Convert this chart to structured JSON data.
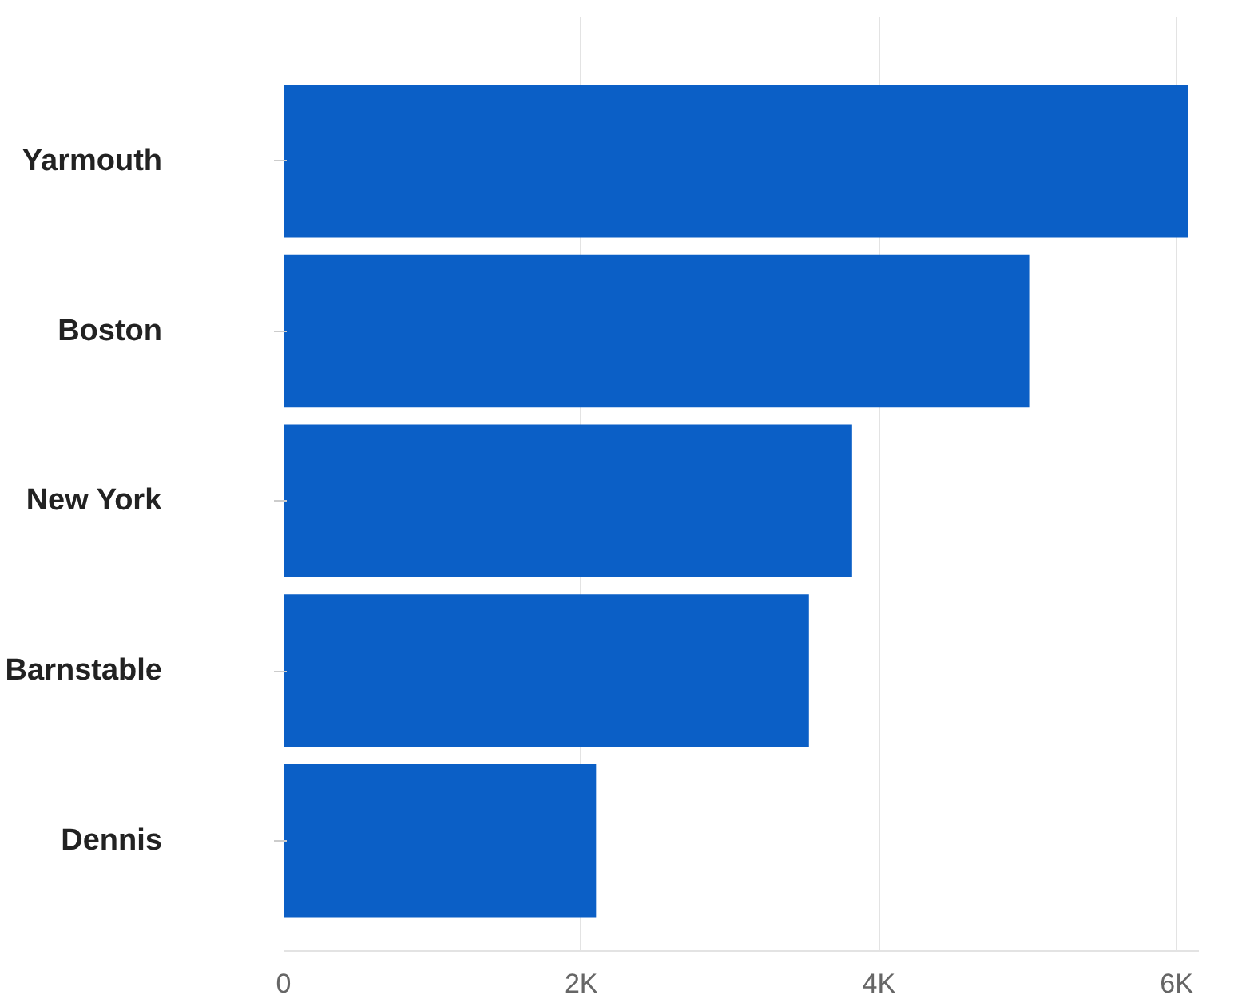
{
  "chart_data": {
    "type": "bar",
    "orientation": "horizontal",
    "categories": [
      "Yarmouth",
      "Boston",
      "New York",
      "Barnstable",
      "Dennis"
    ],
    "values": [
      6080,
      5010,
      3820,
      3530,
      2100
    ],
    "color": "#0b5fc6",
    "xlim": [
      0,
      6150
    ],
    "xticks": [
      0,
      {
        "value": 2000,
        "label": "2K"
      },
      {
        "value": 4000,
        "label": "4K"
      },
      {
        "value": 6000,
        "label": "6K"
      }
    ],
    "grid": "x"
  }
}
